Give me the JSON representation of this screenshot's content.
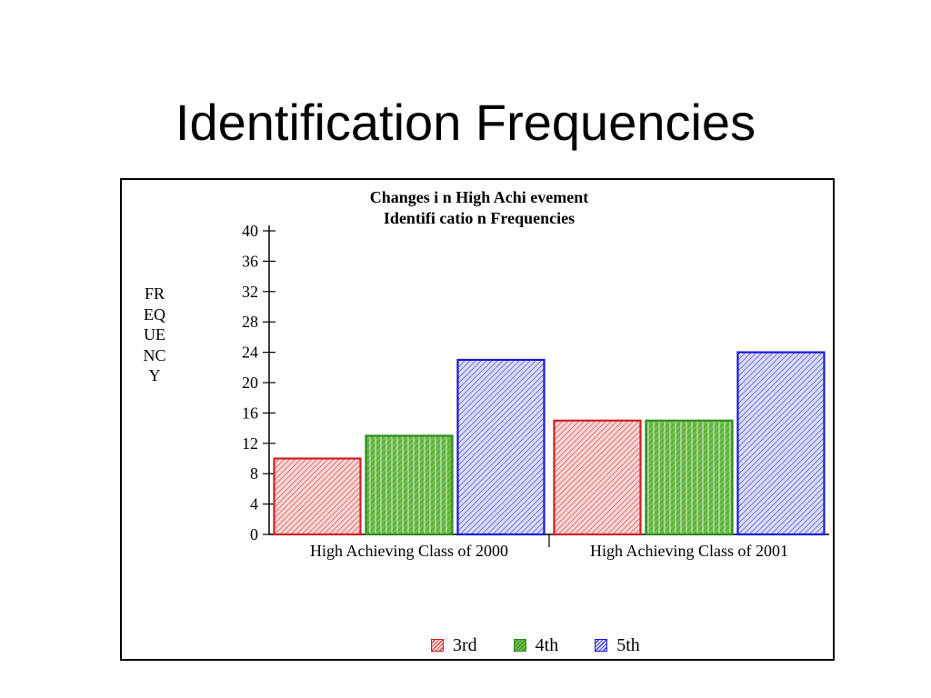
{
  "slide": {
    "title": "Identification Frequencies"
  },
  "chart_data": {
    "type": "bar",
    "title": "Changes i n High Achi evement",
    "subtitle": "Identifi catio n Frequencies",
    "ylabel": "FREQUENCY",
    "xlabel": "",
    "categories": [
      "High Achieving Class of 2000",
      "High Achieving Class of 2001"
    ],
    "series": [
      {
        "name": "3rd",
        "values": [
          10,
          15
        ],
        "color": "#cc2222",
        "fill": "#f6d6d6"
      },
      {
        "name": "4th",
        "values": [
          13,
          15
        ],
        "color": "#2e8b1e",
        "fill": "#6fbf4a"
      },
      {
        "name": "5th",
        "values": [
          23,
          24
        ],
        "color": "#1a1ad0",
        "fill": "#dcdcf6"
      }
    ],
    "ylim": [
      0,
      40
    ],
    "yticks": [
      0,
      4,
      8,
      12,
      16,
      20,
      24,
      28,
      32,
      36,
      40
    ],
    "grid": false,
    "legend_position": "bottom"
  }
}
